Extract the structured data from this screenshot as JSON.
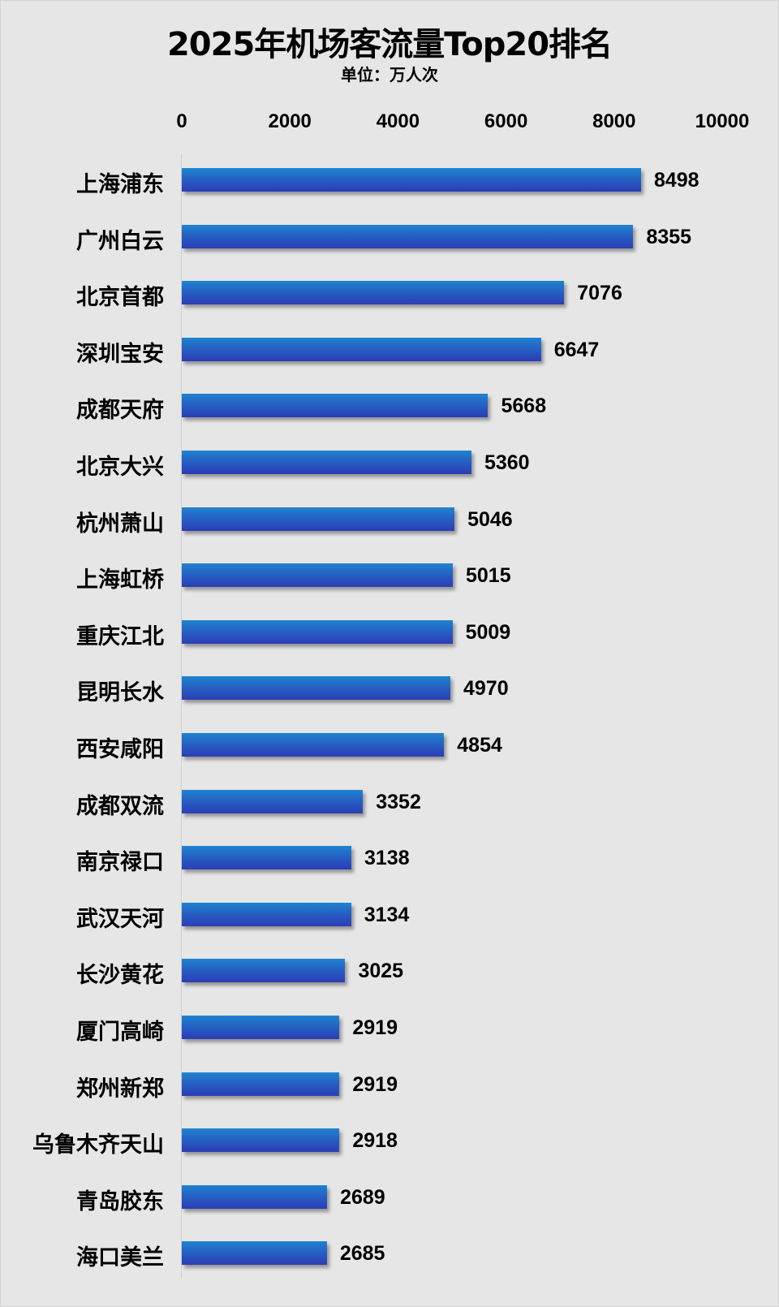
{
  "chart_data": {
    "type": "bar",
    "orientation": "horizontal",
    "title": "2025年机场客流量Top20排名",
    "subtitle": "单位：万人次",
    "xlabel": "",
    "ylabel": "",
    "xlim": [
      0,
      10000
    ],
    "x_ticks": [
      "0",
      "2000",
      "4000",
      "6000",
      "8000",
      "10000"
    ],
    "x_axis_position": "top",
    "grid": false,
    "legend": null,
    "bar_color": "#2561c4",
    "categories": [
      "上海浦东",
      "广州白云",
      "北京首都",
      "深圳宝安",
      "成都天府",
      "北京大兴",
      "杭州萧山",
      "上海虹桥",
      "重庆江北",
      "昆明长水",
      "西安咸阳",
      "成都双流",
      "南京禄口",
      "武汉天河",
      "长沙黄花",
      "厦门高崎",
      "郑州新郑",
      "乌鲁木齐天山",
      "青岛胶东",
      "海口美兰"
    ],
    "values": [
      8498,
      8355,
      7076,
      6647,
      5668,
      5360,
      5046,
      5015,
      5009,
      4970,
      4854,
      3352,
      3138,
      3134,
      3025,
      2919,
      2919,
      2918,
      2689,
      2685
    ]
  },
  "header": {
    "title": "2025年机场客流量Top20排名",
    "subtitle": "单位：万人次"
  },
  "axis": {
    "ticks": [
      "0",
      "2000",
      "4000",
      "6000",
      "8000",
      "10000"
    ]
  },
  "rows": [
    {
      "label": "上海浦东",
      "value": "8498"
    },
    {
      "label": "广州白云",
      "value": "8355"
    },
    {
      "label": "北京首都",
      "value": "7076"
    },
    {
      "label": "深圳宝安",
      "value": "6647"
    },
    {
      "label": "成都天府",
      "value": "5668"
    },
    {
      "label": "北京大兴",
      "value": "5360"
    },
    {
      "label": "杭州萧山",
      "value": "5046"
    },
    {
      "label": "上海虹桥",
      "value": "5015"
    },
    {
      "label": "重庆江北",
      "value": "5009"
    },
    {
      "label": "昆明长水",
      "value": "4970"
    },
    {
      "label": "西安咸阳",
      "value": "4854"
    },
    {
      "label": "成都双流",
      "value": "3352"
    },
    {
      "label": "南京禄口",
      "value": "3138"
    },
    {
      "label": "武汉天河",
      "value": "3134"
    },
    {
      "label": "长沙黄花",
      "value": "3025"
    },
    {
      "label": "厦门高崎",
      "value": "2919"
    },
    {
      "label": "郑州新郑",
      "value": "2919"
    },
    {
      "label": "乌鲁木齐天山",
      "value": "2918"
    },
    {
      "label": "青岛胶东",
      "value": "2689"
    },
    {
      "label": "海口美兰",
      "value": "2685"
    }
  ]
}
